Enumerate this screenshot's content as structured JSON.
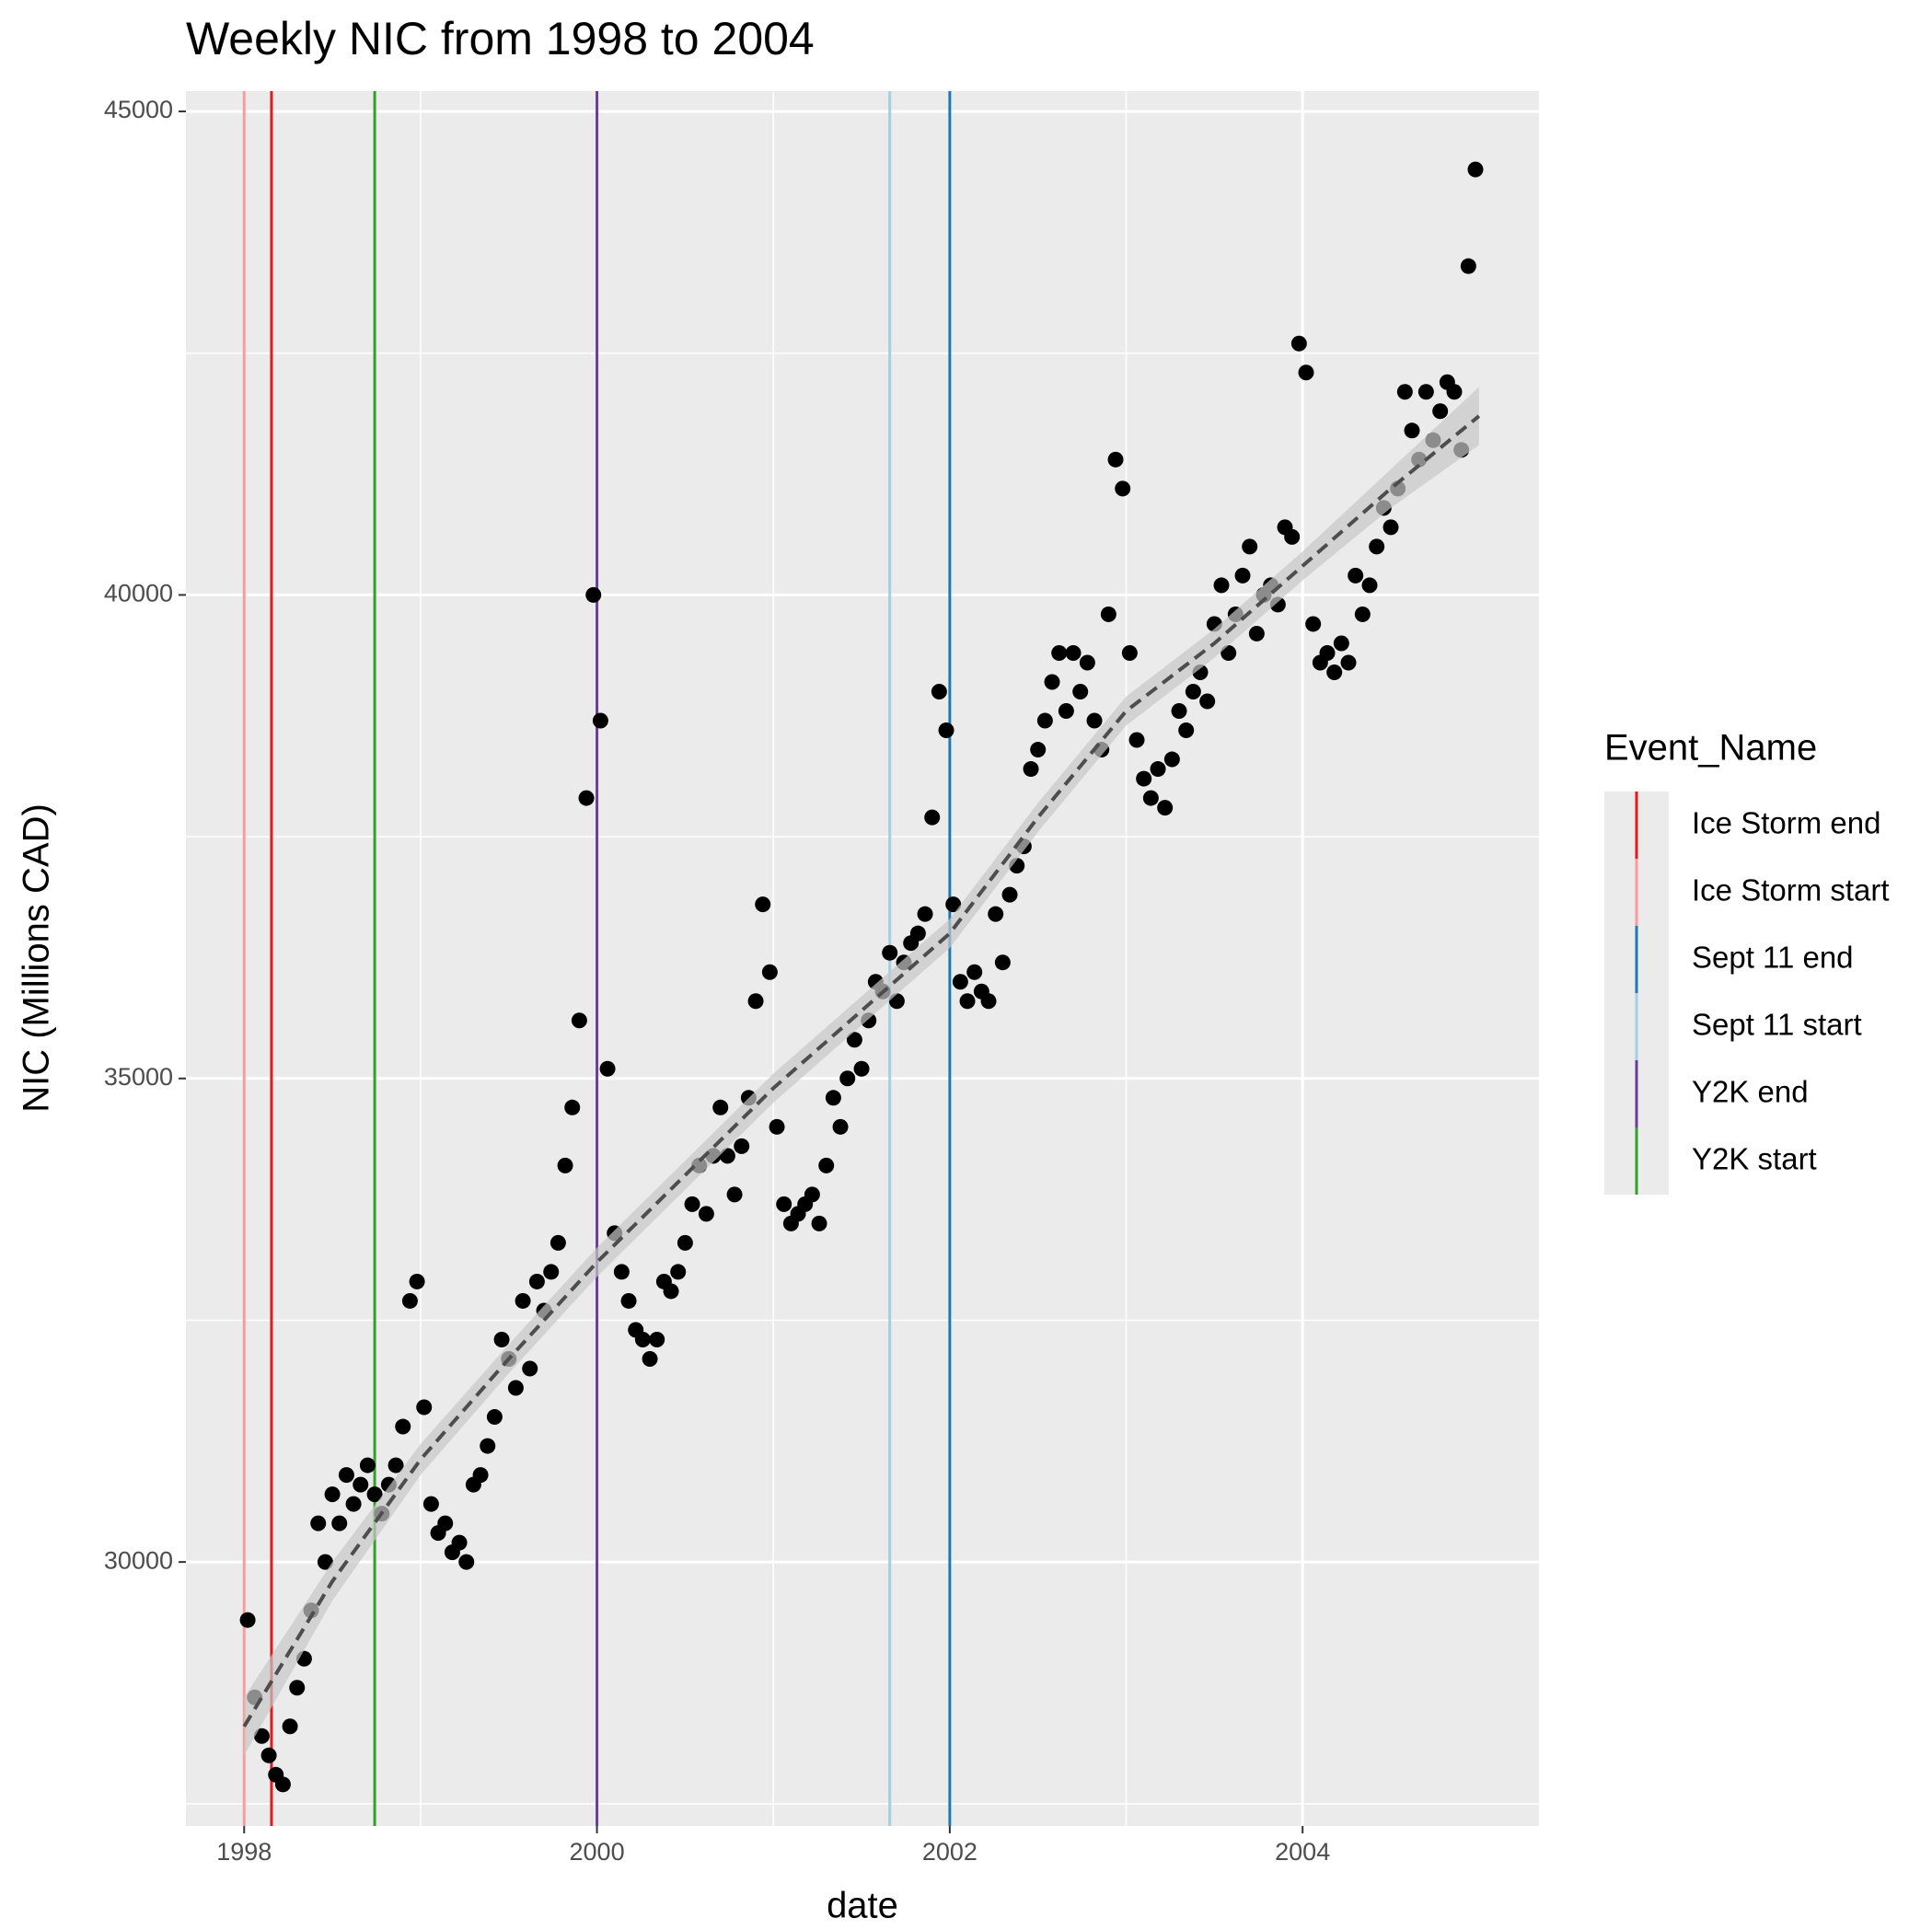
{
  "chart_data": {
    "type": "scatter",
    "title": "Weekly NIC from 1998 to 2004",
    "x_label": "date",
    "y_label": "NIC (Millions CAD)",
    "legend_title": "Event_Name",
    "xlim": [
      1997.67,
      2005.34
    ],
    "ylim": [
      27270,
      45210
    ],
    "xticks": [
      1998,
      2000,
      2002,
      2004
    ],
    "yticks": [
      30000,
      35000,
      40000,
      45000
    ],
    "xminor": [
      1999,
      2001,
      2003
    ],
    "yminor": [
      27500,
      32500,
      37500,
      42500
    ],
    "grid": true,
    "legend_position": "right",
    "point_color": "#000000",
    "x": [
      1998.02,
      1998.06,
      1998.1,
      1998.14,
      1998.18,
      1998.22,
      1998.26,
      1998.3,
      1998.34,
      1998.38,
      1998.42,
      1998.46,
      1998.5,
      1998.54,
      1998.58,
      1998.62,
      1998.66,
      1998.7,
      1998.74,
      1998.78,
      1998.82,
      1998.86,
      1998.9,
      1998.94,
      1998.98,
      1999.02,
      1999.06,
      1999.1,
      1999.14,
      1999.18,
      1999.22,
      1999.26,
      1999.3,
      1999.34,
      1999.38,
      1999.42,
      1999.46,
      1999.5,
      1999.54,
      1999.58,
      1999.62,
      1999.66,
      1999.7,
      1999.74,
      1999.78,
      1999.82,
      1999.86,
      1999.9,
      1999.94,
      1999.98,
      2000.02,
      2000.06,
      2000.1,
      2000.14,
      2000.18,
      2000.22,
      2000.26,
      2000.3,
      2000.34,
      2000.38,
      2000.42,
      2000.46,
      2000.5,
      2000.54,
      2000.58,
      2000.62,
      2000.66,
      2000.7,
      2000.74,
      2000.78,
      2000.82,
      2000.86,
      2000.9,
      2000.94,
      2000.98,
      2001.02,
      2001.06,
      2001.1,
      2001.14,
      2001.18,
      2001.22,
      2001.26,
      2001.3,
      2001.34,
      2001.38,
      2001.42,
      2001.46,
      2001.5,
      2001.54,
      2001.58,
      2001.62,
      2001.66,
      2001.7,
      2001.74,
      2001.78,
      2001.82,
      2001.86,
      2001.9,
      2001.94,
      2001.98,
      2002.02,
      2002.06,
      2002.1,
      2002.14,
      2002.18,
      2002.22,
      2002.26,
      2002.3,
      2002.34,
      2002.38,
      2002.42,
      2002.46,
      2002.5,
      2002.54,
      2002.58,
      2002.62,
      2002.66,
      2002.7,
      2002.74,
      2002.78,
      2002.82,
      2002.86,
      2002.9,
      2002.94,
      2002.98,
      2003.02,
      2003.06,
      2003.1,
      2003.14,
      2003.18,
      2003.22,
      2003.26,
      2003.3,
      2003.34,
      2003.38,
      2003.42,
      2003.46,
      2003.5,
      2003.54,
      2003.58,
      2003.62,
      2003.66,
      2003.7,
      2003.74,
      2003.78,
      2003.82,
      2003.86,
      2003.9,
      2003.94,
      2003.98,
      2004.02,
      2004.06,
      2004.1,
      2004.14,
      2004.18,
      2004.22,
      2004.26,
      2004.3,
      2004.34,
      2004.38,
      2004.42,
      2004.46,
      2004.5,
      2004.54,
      2004.58,
      2004.62,
      2004.66,
      2004.7,
      2004.74,
      2004.78,
      2004.82,
      2004.86,
      2004.9,
      2004.94,
      2004.98
    ],
    "values": [
      29400,
      28600,
      28200,
      28000,
      27800,
      27700,
      28300,
      28700,
      29000,
      29500,
      30400,
      30000,
      30700,
      30400,
      30900,
      30600,
      30800,
      31000,
      30700,
      30500,
      30800,
      31000,
      31400,
      32700,
      32900,
      31600,
      30600,
      30300,
      30400,
      30100,
      30200,
      30000,
      30800,
      30900,
      31200,
      31500,
      32300,
      32100,
      31800,
      32700,
      32000,
      32900,
      32600,
      33000,
      33300,
      34100,
      34700,
      35600,
      37900,
      40000,
      38700,
      35100,
      33400,
      33000,
      32700,
      32400,
      32300,
      32100,
      32300,
      32900,
      32800,
      33000,
      33300,
      33700,
      34100,
      33600,
      34200,
      34700,
      34200,
      33800,
      34300,
      34800,
      35800,
      36800,
      36100,
      34500,
      33700,
      33500,
      33600,
      33700,
      33800,
      33500,
      34100,
      34800,
      34500,
      35000,
      35400,
      35100,
      35600,
      36000,
      35900,
      36300,
      35800,
      36200,
      36400,
      36500,
      36700,
      37700,
      39000,
      38600,
      36800,
      36000,
      35800,
      36100,
      35900,
      35800,
      36700,
      36200,
      36900,
      37200,
      37400,
      38200,
      38400,
      38700,
      39100,
      39400,
      38800,
      39400,
      39000,
      39300,
      38700,
      38400,
      39800,
      41400,
      41100,
      39400,
      38500,
      38100,
      37900,
      38200,
      37800,
      38300,
      38800,
      38600,
      39000,
      39200,
      38900,
      39700,
      40100,
      39400,
      39800,
      40200,
      40500,
      39600,
      40000,
      40100,
      39900,
      40700,
      40600,
      42600,
      42300,
      39700,
      39300,
      39400,
      39200,
      39500,
      39300,
      40200,
      39800,
      40100,
      40500,
      40900,
      40700,
      41100,
      42100,
      41700,
      41400,
      42100,
      41600,
      41900,
      42200,
      42100,
      41500,
      43400,
      44400
    ],
    "smooth": {
      "color": "#4d4d4d",
      "band_color": "#c8c8c8",
      "x": [
        1998,
        1998.5,
        1999,
        1999.5,
        2000,
        2000.5,
        2001,
        2001.5,
        2002,
        2002.5,
        2003,
        2003.5,
        2004,
        2004.5,
        2005
      ],
      "values": [
        28300,
        29800,
        31060,
        32100,
        33100,
        34000,
        34900,
        35700,
        36500,
        37700,
        38800,
        39500,
        40300,
        41100,
        41850
      ],
      "lower": [
        28000,
        29600,
        30900,
        31950,
        32950,
        33850,
        34750,
        35550,
        36350,
        37550,
        38650,
        39350,
        40150,
        40900,
        41550
      ],
      "upper": [
        28600,
        30000,
        31220,
        32250,
        33250,
        34150,
        35050,
        35850,
        36650,
        37850,
        38950,
        39650,
        40450,
        41300,
        42150
      ]
    },
    "events": [
      {
        "name": "Ice Storm end",
        "color": "#e31a1c",
        "x": 1998.155
      },
      {
        "name": "Ice Storm start",
        "color": "#fb9a99",
        "x": 1998.0
      },
      {
        "name": "Sept 11 end",
        "color": "#1f78b4",
        "x": 2002.0
      },
      {
        "name": "Sept 11 start",
        "color": "#a6cee3",
        "x": 2001.66
      },
      {
        "name": "Y2K end",
        "color": "#6a3d9a",
        "x": 2000.0
      },
      {
        "name": "Y2K start",
        "color": "#33a02c",
        "x": 1998.74
      }
    ]
  }
}
